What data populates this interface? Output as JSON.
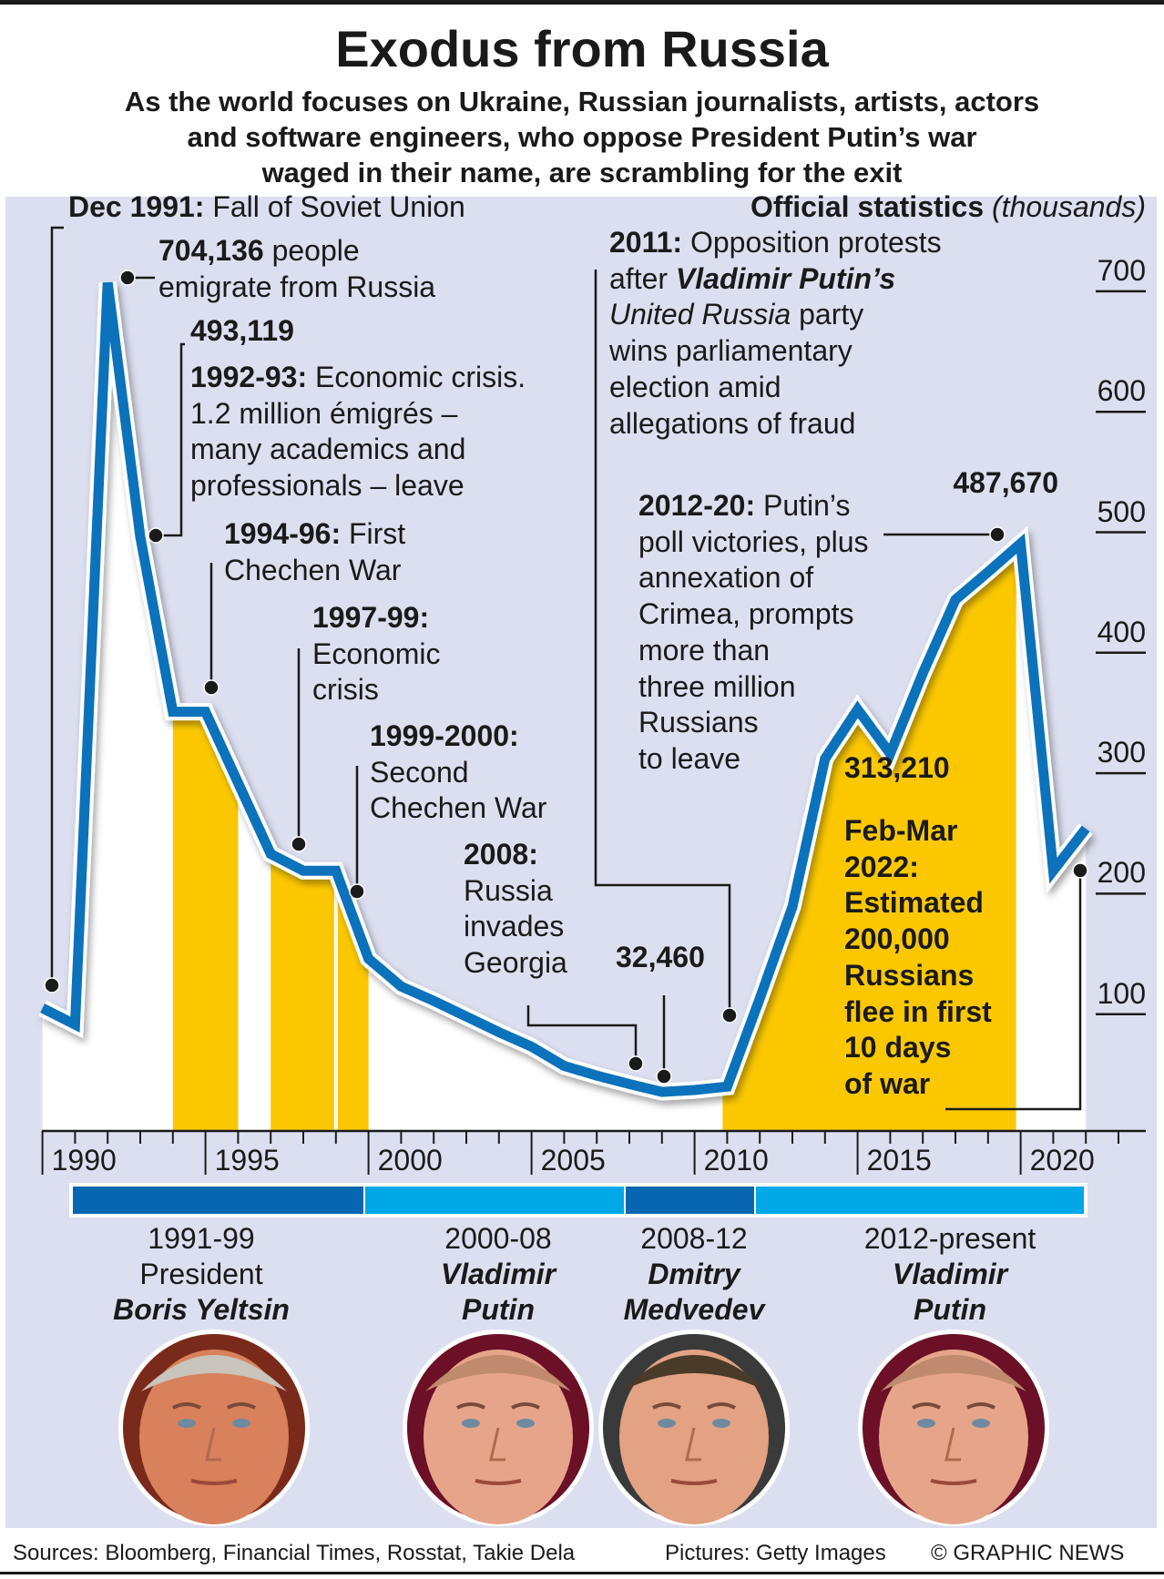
{
  "title": "Exodus from Russia",
  "subtitle": [
    "As the world focuses on Ukraine, Russian journalists, artists, actors",
    "and software engineers, who oppose President Putin’s war",
    "waged in their name, are scrambling for the exit"
  ],
  "chart_data": {
    "type": "line",
    "title": "Official statistics",
    "unit_label": "(thousands)",
    "x": [
      1990,
      1991,
      1992,
      1993,
      1994,
      1995,
      1996,
      1997,
      1998,
      1999,
      2000,
      2001,
      2002,
      2003,
      2004,
      2005,
      2006,
      2007,
      2008,
      2009,
      2010,
      2011,
      2012,
      2013,
      2014,
      2015,
      2016,
      2017,
      2018,
      2019,
      2020,
      2021,
      2022
    ],
    "values": [
      102,
      88.347,
      704.136,
      493.119,
      348,
      348,
      289,
      230,
      216,
      216,
      143,
      120,
      108,
      95,
      82,
      70,
      54,
      46,
      39,
      32.46,
      34,
      36.8,
      110,
      186,
      309,
      350,
      313.21,
      380,
      441,
      464,
      487.67,
      216,
      251
    ],
    "ylim": [
      0,
      700
    ],
    "yticks": [
      "700",
      "600",
      "500",
      "400",
      "300",
      "200",
      "100"
    ],
    "ytick_values": [
      700,
      600,
      500,
      400,
      300,
      200,
      100
    ],
    "xticks": [
      "1990",
      "1995",
      "2000",
      "2005",
      "2010",
      "2015",
      "2020"
    ],
    "xtick_values": [
      1990,
      1995,
      2000,
      2005,
      2010,
      2015,
      2020
    ],
    "highlight_periods": [
      [
        1994,
        1996
      ],
      [
        1997,
        1999
      ],
      [
        1999,
        2000
      ],
      [
        2011,
        2020
      ]
    ],
    "colors": {
      "line": "#0b72bb",
      "highlight": "#fbc800",
      "under_curve": "#ffffff",
      "background": "#dcdff0"
    },
    "grid": false
  },
  "annotations": [
    {
      "lines": [
        [
          {
            "t": "Dec 1991:",
            "s": "b"
          },
          {
            "t": " Fall of Soviet Union",
            "s": ""
          }
        ]
      ]
    },
    {
      "lines": [
        [
          {
            "t": "704,136",
            "s": "b"
          },
          {
            "t": " people",
            "s": ""
          }
        ],
        [
          {
            "t": "emigrate from Russia",
            "s": ""
          }
        ]
      ]
    },
    {
      "lines": [
        [
          {
            "t": "493,119",
            "s": "b"
          }
        ]
      ]
    },
    {
      "lines": [
        [
          {
            "t": "1992-93:",
            "s": "b"
          },
          {
            "t": " Economic crisis.",
            "s": ""
          }
        ],
        [
          {
            "t": "1.2 million émigrés –",
            "s": ""
          }
        ],
        [
          {
            "t": "many academics and",
            "s": ""
          }
        ],
        [
          {
            "t": "professionals – leave",
            "s": ""
          }
        ]
      ]
    },
    {
      "lines": [
        [
          {
            "t": "1994-96:",
            "s": "b"
          },
          {
            "t": " First",
            "s": ""
          }
        ],
        [
          {
            "t": "Chechen War",
            "s": ""
          }
        ]
      ]
    },
    {
      "lines": [
        [
          {
            "t": "1997-99:",
            "s": "b"
          }
        ],
        [
          {
            "t": "Economic",
            "s": ""
          }
        ],
        [
          {
            "t": "crisis",
            "s": ""
          }
        ]
      ]
    },
    {
      "lines": [
        [
          {
            "t": "1999-2000:",
            "s": "b"
          }
        ],
        [
          {
            "t": "Second",
            "s": ""
          }
        ],
        [
          {
            "t": "Chechen War",
            "s": ""
          }
        ]
      ]
    },
    {
      "lines": [
        [
          {
            "t": "2008:",
            "s": "b"
          }
        ],
        [
          {
            "t": "Russia",
            "s": ""
          }
        ],
        [
          {
            "t": "invades",
            "s": ""
          }
        ],
        [
          {
            "t": "Georgia",
            "s": ""
          }
        ]
      ]
    },
    {
      "lines": [
        [
          {
            "t": "32,460",
            "s": "b"
          }
        ]
      ]
    },
    {
      "lines": [
        [
          {
            "t": "2011:",
            "s": "b"
          },
          {
            "t": " Opposition protests",
            "s": ""
          }
        ],
        [
          {
            "t": "after ",
            "s": ""
          },
          {
            "t": "Vladimir Putin’s",
            "s": "bi"
          }
        ],
        [
          {
            "t": "United Russia",
            "s": "i"
          },
          {
            "t": " party",
            "s": ""
          }
        ],
        [
          {
            "t": "wins parliamentary",
            "s": ""
          }
        ],
        [
          {
            "t": "election amid",
            "s": ""
          }
        ],
        [
          {
            "t": "allegations of fraud",
            "s": ""
          }
        ]
      ]
    },
    {
      "lines": [
        [
          {
            "t": "2012-20:",
            "s": "b"
          },
          {
            "t": " Putin’s",
            "s": ""
          }
        ],
        [
          {
            "t": "poll victories, plus",
            "s": ""
          }
        ],
        [
          {
            "t": "annexation of",
            "s": ""
          }
        ],
        [
          {
            "t": "Crimea, prompts",
            "s": ""
          }
        ],
        [
          {
            "t": "more than",
            "s": ""
          }
        ],
        [
          {
            "t": "three million",
            "s": ""
          }
        ],
        [
          {
            "t": "Russians",
            "s": ""
          }
        ],
        [
          {
            "t": "to leave",
            "s": ""
          }
        ]
      ]
    },
    {
      "lines": [
        [
          {
            "t": "487,670",
            "s": "b"
          }
        ]
      ]
    },
    {
      "lines": [
        [
          {
            "t": "313,210",
            "s": "b"
          }
        ]
      ]
    },
    {
      "lines": [
        [
          {
            "t": "Feb-Mar",
            "s": "b"
          }
        ],
        [
          {
            "t": "2022:",
            "s": "b"
          }
        ],
        [
          {
            "t": "Estimated",
            "s": "b"
          }
        ],
        [
          {
            "t": "200,000",
            "s": "b"
          }
        ],
        [
          {
            "t": "Russians",
            "s": "b"
          }
        ],
        [
          {
            "t": "flee in first",
            "s": "b"
          }
        ],
        [
          {
            "t": "10 days",
            "s": "b"
          }
        ],
        [
          {
            "t": "of war",
            "s": "b"
          }
        ]
      ]
    },
    {
      "lines": [
        [
          {
            "t": "Official statistics",
            "s": "b"
          },
          {
            "t": " (thousands)",
            "s": "i"
          }
        ]
      ]
    }
  ],
  "leaders": [
    {
      "period": "1991-99",
      "role": "President",
      "name": "Boris Yeltsin",
      "color": "#0866b0",
      "photo": "boris-yeltsin-photo"
    },
    {
      "period": "2000-08",
      "role": "",
      "name": "Vladimir Putin",
      "color": "#00a8e8",
      "photo": "vladimir-putin-photo"
    },
    {
      "period": "2008-12",
      "role": "",
      "name": "Dmitry Medvedev",
      "color": "#0866b0",
      "photo": "dmitry-medvedev-photo"
    },
    {
      "period": "2012-present",
      "role": "",
      "name": "Vladimir Putin",
      "color": "#00a8e8",
      "photo": "vladimir-putin-photo"
    }
  ],
  "footer": {
    "sources": "Sources: Bloomberg, Financial Times, Rosstat, Takie Dela",
    "pictures": "Pictures: Getty Images",
    "credit": "© GRAPHIC NEWS"
  }
}
